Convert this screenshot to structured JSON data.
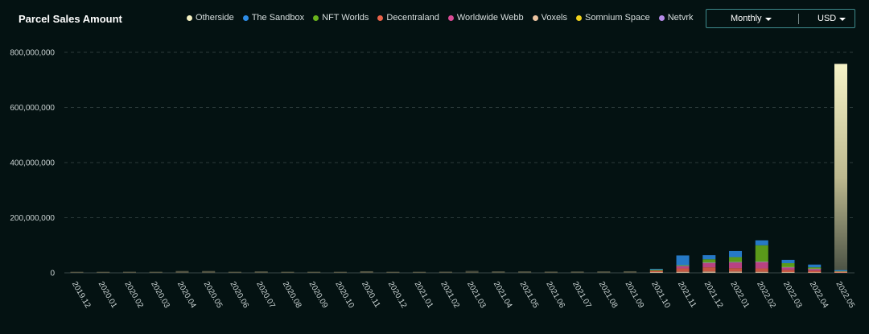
{
  "chart_data": {
    "type": "bar",
    "stacked": true,
    "title": "Parcel Sales Amount",
    "xlabel": "",
    "ylabel": "",
    "ylim": [
      0,
      800000000
    ],
    "yticks": [
      0,
      200000000,
      400000000,
      600000000,
      800000000
    ],
    "ytick_labels": [
      "0",
      "200,000,000",
      "400,000,000",
      "600,000,000",
      "800,000,000"
    ],
    "grid": "horizontal dashed",
    "legend_position": "top",
    "categories": [
      "2019.12",
      "2020.01",
      "2020.02",
      "2020.03",
      "2020.04",
      "2020.05",
      "2020.06",
      "2020.07",
      "2020.08",
      "2020.09",
      "2020.10",
      "2020.11",
      "2020.12",
      "2021.01",
      "2021.02",
      "2021.03",
      "2021.04",
      "2021.05",
      "2021.06",
      "2021.07",
      "2021.08",
      "2021.09",
      "2021.10",
      "2021.11",
      "2021.12",
      "2022.01",
      "2022.02",
      "2022.03",
      "2022.04",
      "2022.05"
    ],
    "series": [
      {
        "name": "Otherside",
        "color": "#f3f0c2",
        "values": [
          0,
          0,
          0,
          0,
          0,
          0,
          0,
          0,
          0,
          0,
          0,
          0,
          0,
          0,
          0,
          0,
          0,
          0,
          0,
          0,
          0,
          0,
          0,
          0,
          0,
          0,
          0,
          0,
          0,
          748000000
        ]
      },
      {
        "name": "The Sandbox",
        "color": "#2d8ce6",
        "values": [
          0,
          0,
          0,
          0,
          0,
          0,
          0,
          0,
          0,
          0,
          0,
          0,
          0,
          0,
          0,
          0,
          0,
          0,
          0,
          0,
          0,
          0,
          2000000,
          35000000,
          15000000,
          22000000,
          18000000,
          12000000,
          10000000,
          4000000
        ]
      },
      {
        "name": "NFT Worlds",
        "color": "#6ab31c",
        "values": [
          0,
          0,
          0,
          0,
          0,
          0,
          0,
          0,
          0,
          0,
          0,
          0,
          0,
          0,
          0,
          0,
          0,
          0,
          0,
          0,
          0,
          0,
          3000000,
          3000000,
          12000000,
          18000000,
          60000000,
          15000000,
          6000000,
          2000000
        ]
      },
      {
        "name": "Decentraland",
        "color": "#e8634a",
        "values": [
          100000,
          200000,
          800000,
          700000,
          2500000,
          2200000,
          900000,
          1200000,
          900000,
          700000,
          900000,
          1800000,
          900000,
          900000,
          1500000,
          3500000,
          3500000,
          2200000,
          2000000,
          2500000,
          2500000,
          3000000,
          5000000,
          12000000,
          15000000,
          12000000,
          12000000,
          8000000,
          6000000,
          2000000
        ]
      },
      {
        "name": "Worldwide Webb",
        "color": "#d94b95",
        "values": [
          0,
          0,
          0,
          0,
          0,
          0,
          0,
          0,
          0,
          0,
          0,
          0,
          0,
          0,
          0,
          0,
          0,
          0,
          0,
          0,
          0,
          0,
          0,
          8000000,
          15000000,
          20000000,
          22000000,
          8000000,
          5000000,
          1000000
        ]
      },
      {
        "name": "Voxels",
        "color": "#ebc3a0",
        "values": [
          100000,
          100000,
          500000,
          400000,
          800000,
          1000000,
          400000,
          600000,
          400000,
          400000,
          300000,
          700000,
          300000,
          300000,
          900000,
          3500000,
          2000000,
          2000000,
          1200000,
          1500000,
          2000000,
          2500000,
          3000000,
          4000000,
          5000000,
          5000000,
          4000000,
          3000000,
          2000000,
          1000000
        ]
      },
      {
        "name": "Somnium Space",
        "color": "#f0d21c",
        "values": [
          0,
          0,
          0,
          0,
          900000,
          800000,
          0,
          200000,
          0,
          0,
          0,
          200000,
          0,
          0,
          0,
          0,
          0,
          0,
          0,
          0,
          0,
          0,
          0,
          0,
          0,
          0,
          0,
          0,
          0,
          0
        ]
      },
      {
        "name": "Netvrk",
        "color": "#b58be8",
        "values": [
          0,
          0,
          0,
          0,
          0,
          0,
          0,
          0,
          0,
          0,
          0,
          0,
          0,
          0,
          0,
          0,
          0,
          0,
          0,
          0,
          0,
          0,
          0,
          1000000,
          2000000,
          2000000,
          2000000,
          1000000,
          1000000,
          0
        ]
      }
    ]
  },
  "controls": {
    "period_label": "Monthly",
    "currency_label": "USD"
  }
}
